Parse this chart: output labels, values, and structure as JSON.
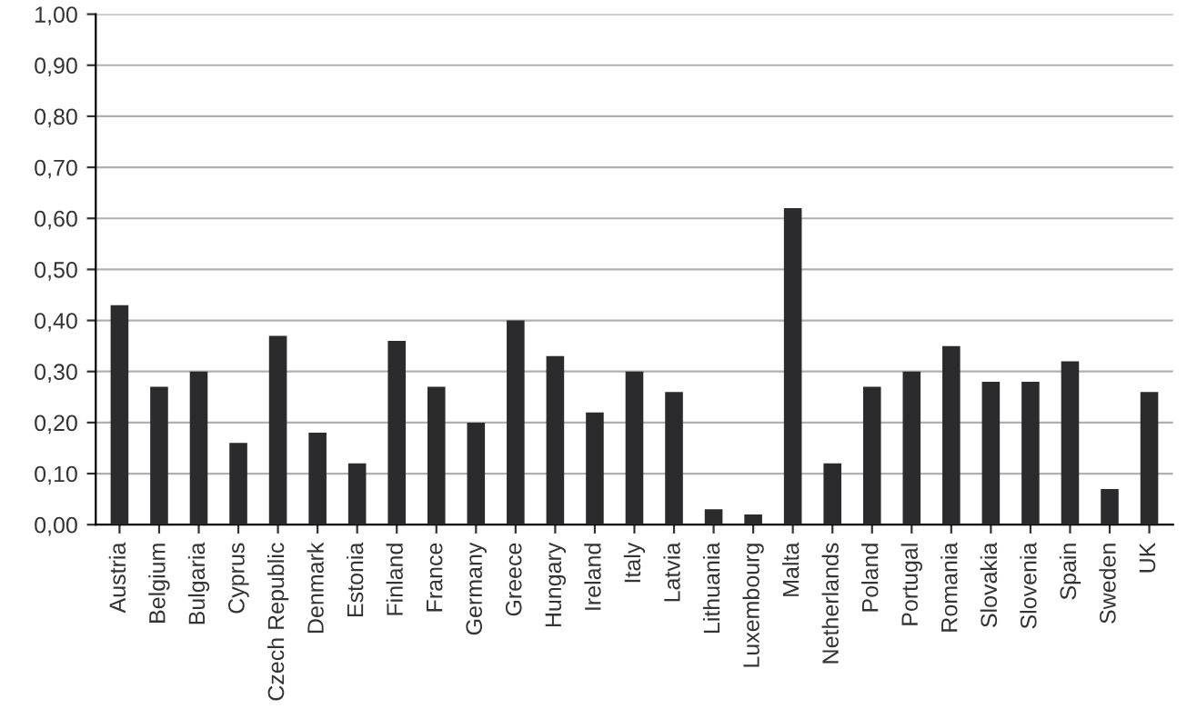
{
  "chart_data": {
    "type": "bar",
    "categories": [
      "Austria",
      "Belgium",
      "Bulgaria",
      "Cyprus",
      "Czech Republic",
      "Denmark",
      "Estonia",
      "Finland",
      "France",
      "Germany",
      "Greece",
      "Hungary",
      "Ireland",
      "Italy",
      "Latvia",
      "Lithuania",
      "Luxembourg",
      "Malta",
      "Netherlands",
      "Poland",
      "Portugal",
      "Romania",
      "Slovakia",
      "Slovenia",
      "Spain",
      "Sweden",
      "UK"
    ],
    "values": [
      0.43,
      0.27,
      0.3,
      0.16,
      0.37,
      0.18,
      0.12,
      0.36,
      0.27,
      0.2,
      0.4,
      0.33,
      0.22,
      0.3,
      0.26,
      0.03,
      0.02,
      0.62,
      0.12,
      0.27,
      0.3,
      0.35,
      0.28,
      0.28,
      0.32,
      0.07,
      0.26
    ],
    "color": "#2b2b2e",
    "ylim": [
      0,
      1
    ],
    "yticks": [
      {
        "value": 0,
        "label": "0,00"
      },
      {
        "value": 0.1,
        "label": "0,10"
      },
      {
        "value": 0.2,
        "label": "0,20"
      },
      {
        "value": 0.3,
        "label": "0,30"
      },
      {
        "value": 0.4,
        "label": "0,40"
      },
      {
        "value": 0.5,
        "label": "0,50"
      },
      {
        "value": 0.6,
        "label": "0,60"
      },
      {
        "value": 0.7,
        "label": "0,70"
      },
      {
        "value": 0.8,
        "label": "0,80"
      },
      {
        "value": 0.9,
        "label": "0,90"
      },
      {
        "value": 1.0,
        "label": "1,00"
      }
    ],
    "grid": "y",
    "legend": false
  }
}
